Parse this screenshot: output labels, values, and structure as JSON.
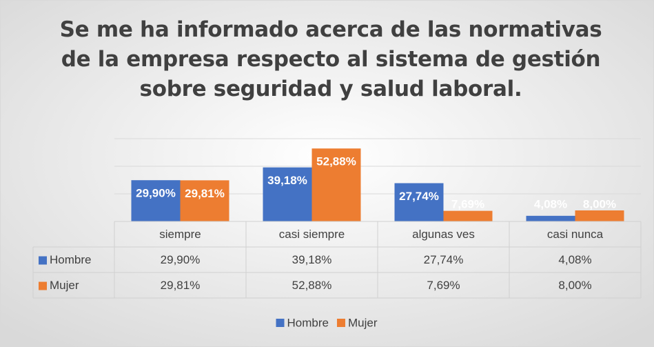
{
  "chart_data": {
    "type": "bar",
    "title": "Se me ha informado acerca de las normativas de la empresa respecto al sistema de gestión sobre seguridad y salud laboral.",
    "categories": [
      "siempre",
      "casi siempre",
      "algunas ves",
      "casi nunca"
    ],
    "series": [
      {
        "name": "Hombre",
        "color": "#4472c4",
        "values": [
          29.9,
          39.18,
          27.74,
          4.08
        ],
        "value_labels": [
          "29,90%",
          "39,18%",
          "27,74%",
          "4,08%"
        ]
      },
      {
        "name": "Mujer",
        "color": "#ed7d31",
        "values": [
          29.81,
          52.88,
          7.69,
          8.0
        ],
        "value_labels": [
          "29,81%",
          "52,88%",
          "7,69%",
          "8,00%"
        ]
      }
    ],
    "ylim": [
      0,
      60
    ],
    "yticks": [
      0,
      20,
      40,
      60
    ],
    "grid": true,
    "legend": "bottom",
    "data_table": true
  }
}
